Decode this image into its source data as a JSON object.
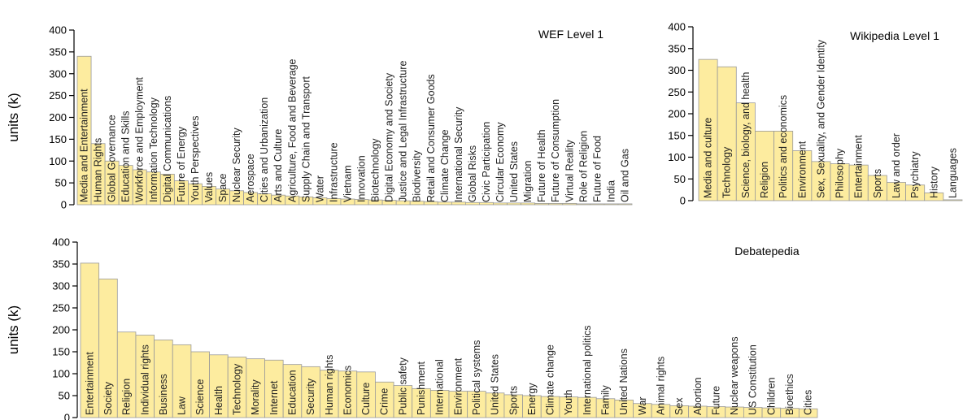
{
  "chart_data": [
    {
      "id": "wef",
      "type": "bar",
      "title": "WEF Level 1",
      "ylabel": "units (k)",
      "ylim": [
        0,
        400
      ],
      "yticks": [
        0,
        50,
        100,
        150,
        200,
        250,
        300,
        350,
        400
      ],
      "bar_color": "#fdec9f",
      "categories": [
        "Media and Entertainment",
        "Human Rights",
        "Global Governance",
        "Education and Skills",
        "Workforce and Employment",
        "Information Technology",
        "Digital Communications",
        "Future of Energy",
        "Youth Perspectives",
        "Values",
        "Space",
        "Nuclear Security",
        "Aerospace",
        "Cities and Urbanization",
        "Arts and Culture",
        "Agriculture, Food and Beverage",
        "Supply Chain and Transport",
        "Water",
        "Infrastructure",
        "Vietnam",
        "Innovation",
        "Biotechnology",
        "Digital Economy and Society",
        "Justice and Legal Infrastructure",
        "Biodiversity",
        "Retail and Consumer Goods",
        "Climate Change",
        "International Security",
        "Global Risks",
        "Civic Participation",
        "Circular Economy",
        "United States",
        "Migration",
        "Future of Health",
        "Future of Consumption",
        "Virtual Reality",
        "Role of Religion",
        "Future of Food",
        "India",
        "Oil and Gas"
      ],
      "values": [
        340,
        140,
        100,
        90,
        80,
        75,
        70,
        55,
        48,
        42,
        36,
        32,
        28,
        25,
        22,
        20,
        18,
        16,
        14,
        13,
        12,
        11,
        10,
        9,
        8,
        7,
        6,
        6,
        5,
        5,
        4,
        4,
        4,
        3,
        3,
        3,
        2,
        2,
        2,
        2
      ]
    },
    {
      "id": "wiki",
      "type": "bar",
      "title": "Wikipedia Level 1",
      "ylabel": "",
      "ylim": [
        0,
        400
      ],
      "yticks": [
        0,
        50,
        100,
        150,
        200,
        250,
        300,
        350,
        400
      ],
      "bar_color": "#fdec9f",
      "categories": [
        "Media and culture",
        "Technology",
        "Science, biology, and health",
        "Religion",
        "Politics and economics",
        "Environment",
        "Sex, Sexuality, and Gender Identity",
        "Philosophy",
        "Entertainment",
        "Sports",
        "Law and order",
        "Psychiatry",
        "History",
        "Languages"
      ],
      "values": [
        325,
        308,
        225,
        160,
        160,
        115,
        90,
        85,
        82,
        58,
        42,
        36,
        18,
        2
      ]
    },
    {
      "id": "debate",
      "type": "bar",
      "title": "Debatepedia",
      "ylabel": "units (k)",
      "ylim": [
        0,
        400
      ],
      "yticks": [
        0,
        50,
        100,
        150,
        200,
        250,
        300,
        350,
        400
      ],
      "bar_color": "#fdec9f",
      "categories": [
        "Entertainment",
        "Society",
        "Religion",
        "Individual rights",
        "Business",
        "Law",
        "Science",
        "Health",
        "Technology",
        "Morality",
        "Internet",
        "Education",
        "Security",
        "Human rights",
        "Economics",
        "Culture",
        "Crime",
        "Public safety",
        "Punishment",
        "International",
        "Environment",
        "Political systems",
        "United States",
        "Sports",
        "Energy",
        "Climate change",
        "Youth",
        "International politics",
        "Family",
        "United Nations",
        "War",
        "Animal rights",
        "Sex",
        "Abortion",
        "Future",
        "Nuclear weapons",
        "US Constitution",
        "Children",
        "Bioethics",
        "Cities"
      ],
      "values": [
        352,
        316,
        195,
        188,
        177,
        166,
        150,
        143,
        138,
        134,
        131,
        121,
        116,
        108,
        106,
        104,
        81,
        73,
        66,
        62,
        60,
        60,
        56,
        52,
        50,
        48,
        47,
        46,
        43,
        40,
        32,
        30,
        27,
        26,
        25,
        24,
        23,
        22,
        21,
        20
      ]
    }
  ]
}
